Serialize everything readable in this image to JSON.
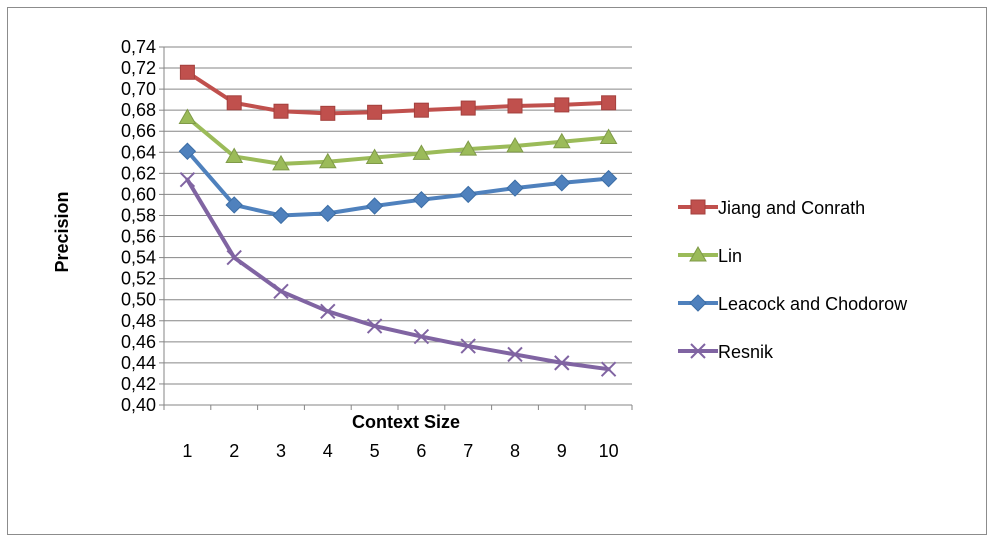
{
  "chart_data": {
    "type": "line",
    "title": "",
    "xlabel": "Context Size",
    "ylabel": "Precision",
    "categories": [
      "1",
      "2",
      "3",
      "4",
      "5",
      "6",
      "7",
      "8",
      "9",
      "10"
    ],
    "ylim": [
      0.4,
      0.74
    ],
    "ytick_step": 0.02,
    "ytick_labels": [
      "0,40",
      "0,42",
      "0,44",
      "0,46",
      "0,48",
      "0,50",
      "0,52",
      "0,54",
      "0,56",
      "0,58",
      "0,60",
      "0,62",
      "0,64",
      "0,66",
      "0,68",
      "0,70",
      "0,72",
      "0,74"
    ],
    "grid": "horizontal",
    "legend_position": "right",
    "series": [
      {
        "name": "Jiang and Conrath",
        "color": "#c0504d",
        "marker": "square",
        "values": [
          0.716,
          0.687,
          0.679,
          0.677,
          0.678,
          0.68,
          0.682,
          0.684,
          0.685,
          0.687
        ]
      },
      {
        "name": "Lin",
        "color": "#9bbb59",
        "marker": "triangle",
        "values": [
          0.673,
          0.636,
          0.629,
          0.631,
          0.635,
          0.639,
          0.643,
          0.646,
          0.65,
          0.654
        ]
      },
      {
        "name": "Leacock and Chodorow",
        "color": "#4f81bd",
        "marker": "diamond",
        "values": [
          0.641,
          0.59,
          0.58,
          0.582,
          0.589,
          0.595,
          0.6,
          0.606,
          0.611,
          0.615
        ]
      },
      {
        "name": "Resnik",
        "color": "#8064a2",
        "marker": "x",
        "values": [
          0.614,
          0.54,
          0.508,
          0.489,
          0.475,
          0.465,
          0.456,
          0.448,
          0.44,
          0.434
        ]
      }
    ]
  }
}
